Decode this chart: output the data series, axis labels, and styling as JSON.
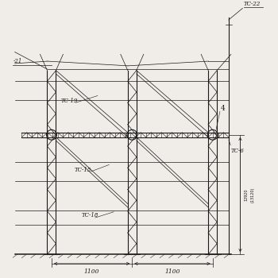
{
  "bg_color": "#f0ede8",
  "line_color": "#1a1a1a",
  "labels": {
    "TC22": "TC-22",
    "TC21": "-21",
    "TC19": "TC-19",
    "TC6": "TC-6",
    "TC15": "TC-15",
    "TC18": "TC-18",
    "dim1": "1100",
    "dim2": "1100",
    "dim_h1": "12920",
    "dim_h2": "(13120)",
    "label4": "4"
  },
  "figsize": [
    3.5,
    3.5
  ],
  "dpi": 100
}
